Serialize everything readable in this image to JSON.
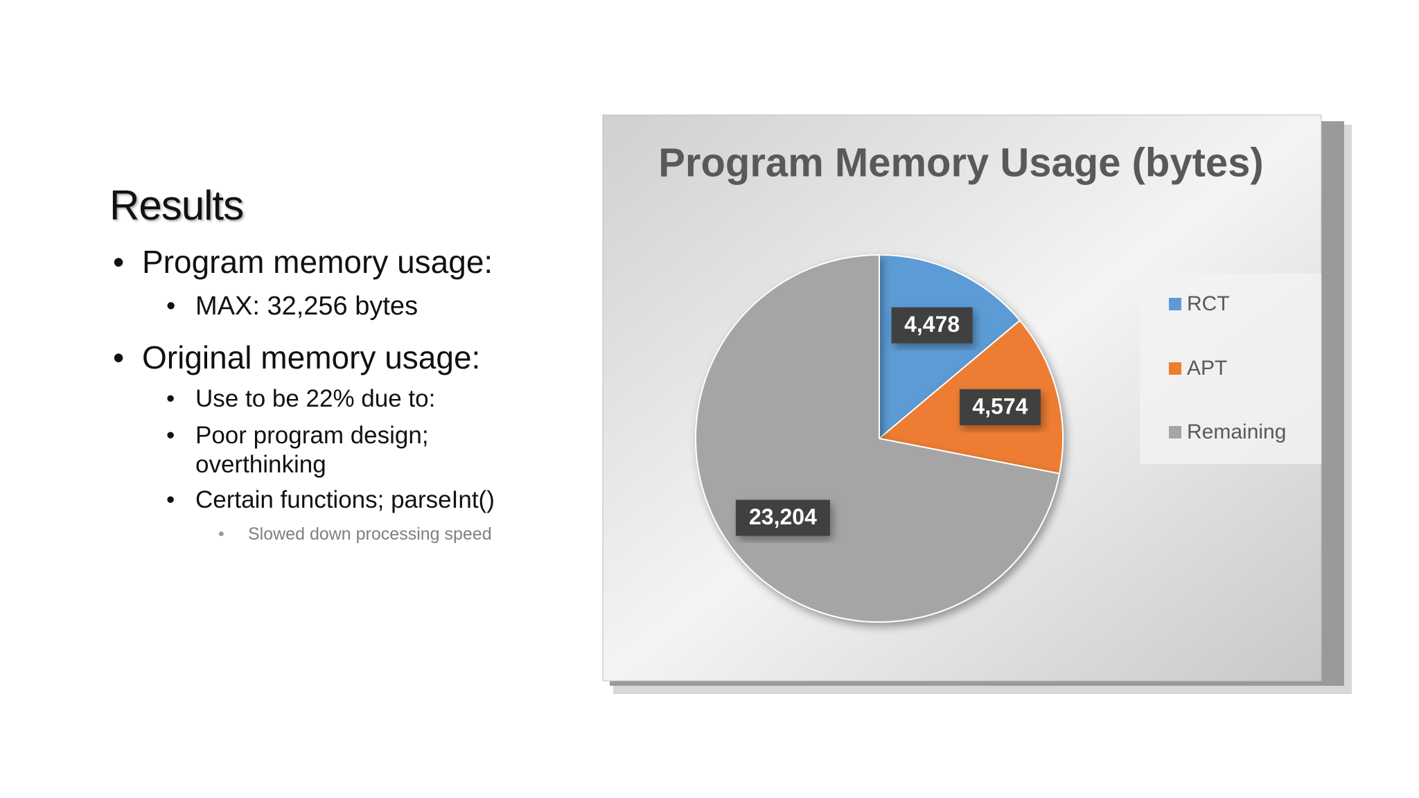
{
  "slide": {
    "title": "Results",
    "bullets": [
      {
        "text": "Program memory usage:",
        "children": [
          {
            "text": "MAX: 32,256 bytes"
          }
        ]
      },
      {
        "text": "Original memory usage:",
        "children": [
          {
            "text": "Use to be 22% due to:"
          },
          {
            "text": "Poor program design; overthinking"
          },
          {
            "text": "Certain functions; parseInt()",
            "children": [
              {
                "text": "Slowed down processing speed"
              }
            ]
          }
        ]
      }
    ]
  },
  "chart_data": {
    "type": "pie",
    "title": "Program Memory Usage (bytes)",
    "categories": [
      "RCT",
      "APT",
      "Remaining"
    ],
    "values": [
      4478,
      4574,
      23204
    ],
    "value_labels": [
      "4,478",
      "4,574",
      "23,204"
    ],
    "colors": [
      "#5b9bd5",
      "#ed7d31",
      "#a5a5a5"
    ],
    "legend": "right"
  }
}
